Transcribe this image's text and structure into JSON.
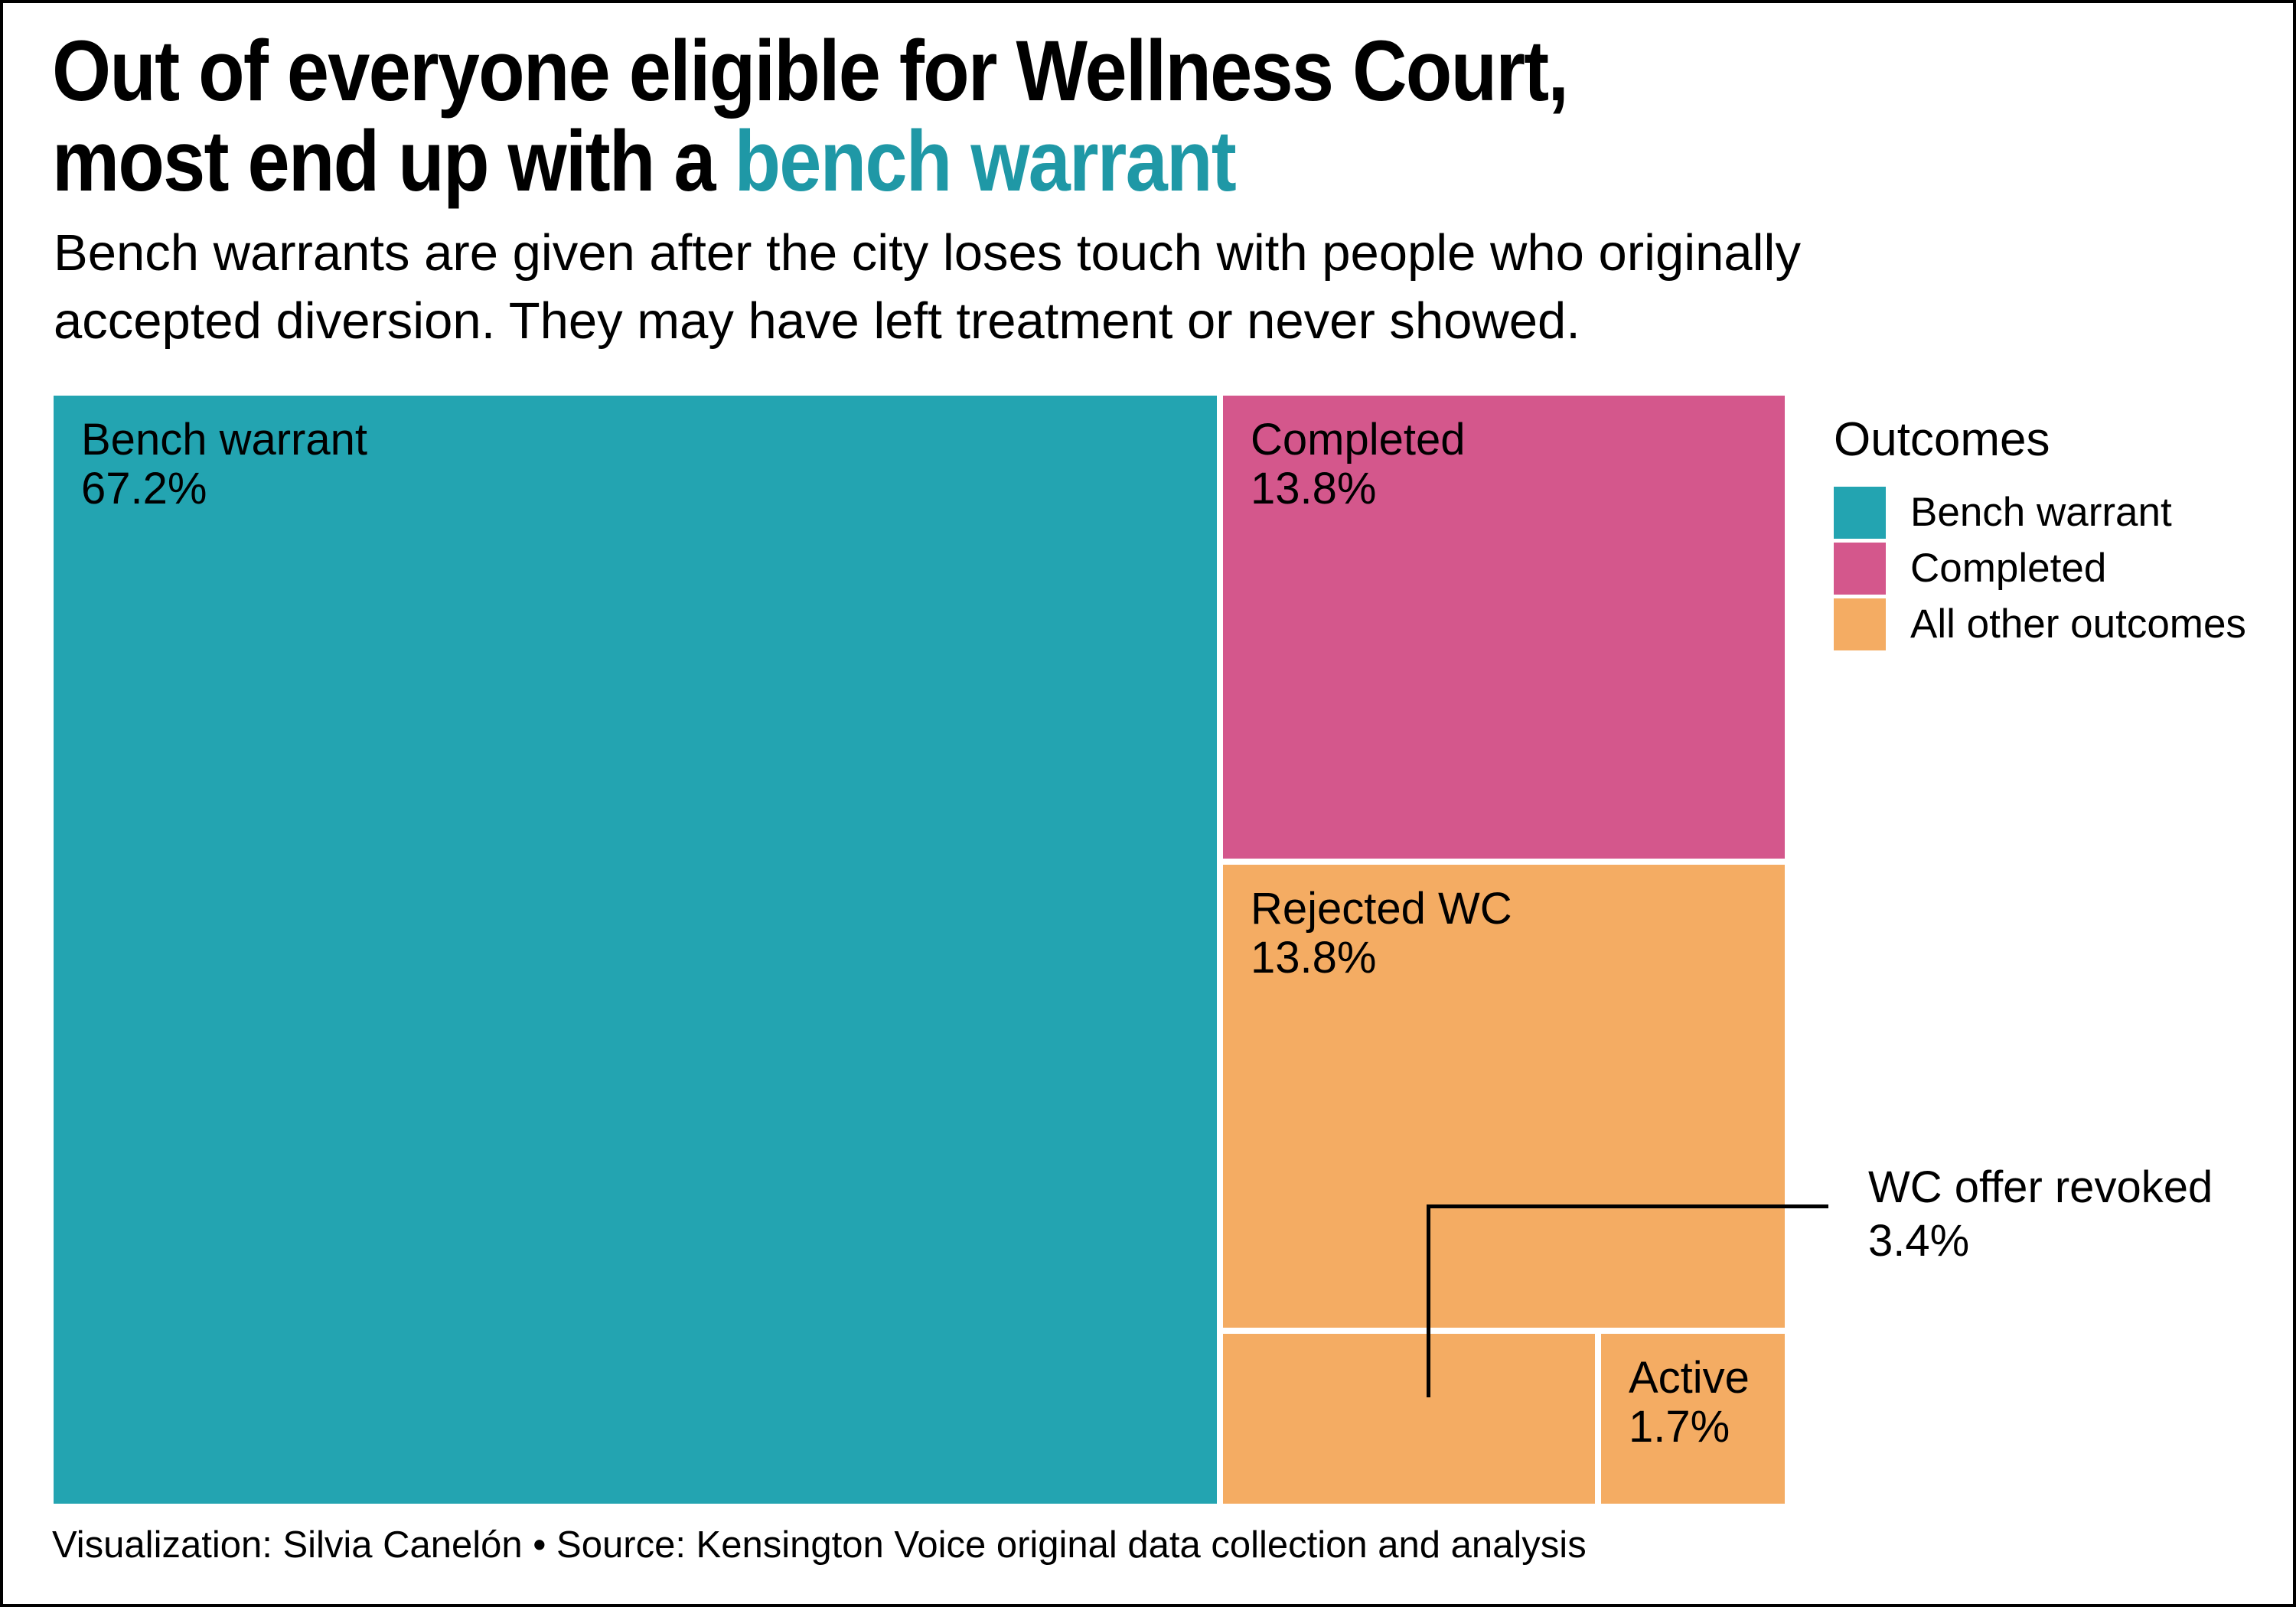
{
  "title": {
    "line1": "Out of everyone eligible for Wellness Court,",
    "line2_prefix": "most end up with a ",
    "line2_highlight": "bench warrant"
  },
  "subtitle": {
    "line1": "Bench warrants are given after the city loses touch with people who originally",
    "line2": "accepted diversion. They may have left treatment or never showed."
  },
  "caption": "Visualization: Silvia Canelón • Source: Kensington Voice original data collection and analysis",
  "colors": {
    "teal": "#23A4B1",
    "pink": "#D4578C",
    "orange": "#F4AC63",
    "title_highlight": "#1F98A6",
    "annotation_line": "#000000"
  },
  "legend": {
    "title": "Outcomes",
    "items": [
      {
        "label": "Bench warrant",
        "color": "#23A4B1"
      },
      {
        "label": "Completed",
        "color": "#D4578C"
      },
      {
        "label": "All other outcomes",
        "color": "#F4AC63"
      }
    ]
  },
  "treemap": {
    "blocks": [
      {
        "name": "Bench warrant",
        "pct": "67.2%",
        "color": "#23A4B1"
      },
      {
        "name": "Completed",
        "pct": "13.8%",
        "color": "#D4578C"
      },
      {
        "name": "Rejected WC",
        "pct": "13.8%",
        "color": "#F4AC63"
      },
      {
        "name": "WC offer revoked",
        "pct": "3.4%",
        "color": "#F4AC63"
      },
      {
        "name": "Active",
        "pct": "1.7%",
        "color": "#F4AC63"
      }
    ],
    "annotation": {
      "line1": "WC offer revoked",
      "line2": "3.4%"
    }
  },
  "chart_data": {
    "type": "treemap",
    "title": "Out of everyone eligible for Wellness Court, most end up with a bench warrant",
    "subtitle": "Bench warrants are given after the city loses touch with people who originally accepted diversion. They may have left treatment or never showed.",
    "unit": "%",
    "legend_title": "Outcomes",
    "legend_position": "right",
    "categories": [
      "Bench warrant",
      "Completed",
      "Rejected WC",
      "WC offer revoked",
      "Active"
    ],
    "values": [
      67.2,
      13.8,
      13.8,
      3.4,
      1.7
    ],
    "series": [
      {
        "name": "Bench warrant",
        "category": "Bench warrant",
        "value": 67.2,
        "color": "#23A4B1"
      },
      {
        "name": "Completed",
        "category": "Completed",
        "value": 13.8,
        "color": "#D4578C"
      },
      {
        "name": "All other outcomes",
        "category": "Rejected WC",
        "value": 13.8,
        "color": "#F4AC63"
      },
      {
        "name": "All other outcomes",
        "category": "WC offer revoked",
        "value": 3.4,
        "color": "#F4AC63"
      },
      {
        "name": "All other outcomes",
        "category": "Active",
        "value": 1.7,
        "color": "#F4AC63"
      }
    ],
    "source": "Kensington Voice original data collection and analysis",
    "visualization_credit": "Silvia Canelón"
  }
}
